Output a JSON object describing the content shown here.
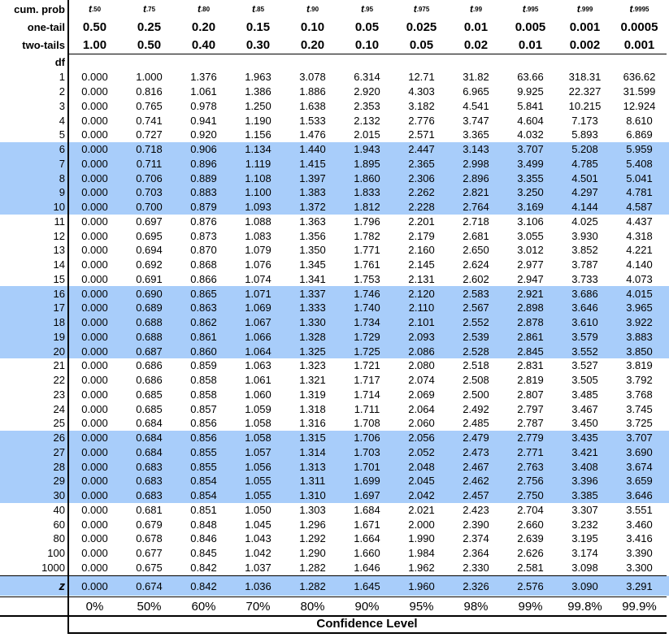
{
  "header": {
    "rows": [
      {
        "label": "cum. prob",
        "cells": [
          {
            "symbol": "t",
            "subscript": ".50"
          },
          {
            "symbol": "t",
            "subscript": ".75"
          },
          {
            "symbol": "t",
            "subscript": ".80"
          },
          {
            "symbol": "t",
            "subscript": ".85"
          },
          {
            "symbol": "t",
            "subscript": ".90"
          },
          {
            "symbol": "t",
            "subscript": ".95"
          },
          {
            "symbol": "t",
            "subscript": ".975"
          },
          {
            "symbol": "t",
            "subscript": ".99"
          },
          {
            "symbol": "t",
            "subscript": ".995"
          },
          {
            "symbol": "t",
            "subscript": ".999"
          },
          {
            "symbol": "t",
            "subscript": ".9995"
          }
        ]
      },
      {
        "label": "one-tail",
        "cells": [
          "0.50",
          "0.25",
          "0.20",
          "0.15",
          "0.10",
          "0.05",
          "0.025",
          "0.01",
          "0.005",
          "0.001",
          "0.0005"
        ]
      },
      {
        "label": "two-tails",
        "cells": [
          "1.00",
          "0.50",
          "0.40",
          "0.30",
          "0.20",
          "0.10",
          "0.05",
          "0.02",
          "0.01",
          "0.002",
          "0.001"
        ]
      }
    ],
    "df_label": "df"
  },
  "table": {
    "rows": [
      {
        "df": "1",
        "cells": [
          "0.000",
          "1.000",
          "1.376",
          "1.963",
          "3.078",
          "6.314",
          "12.71",
          "31.82",
          "63.66",
          "318.31",
          "636.62"
        ]
      },
      {
        "df": "2",
        "cells": [
          "0.000",
          "0.816",
          "1.061",
          "1.386",
          "1.886",
          "2.920",
          "4.303",
          "6.965",
          "9.925",
          "22.327",
          "31.599"
        ]
      },
      {
        "df": "3",
        "cells": [
          "0.000",
          "0.765",
          "0.978",
          "1.250",
          "1.638",
          "2.353",
          "3.182",
          "4.541",
          "5.841",
          "10.215",
          "12.924"
        ]
      },
      {
        "df": "4",
        "cells": [
          "0.000",
          "0.741",
          "0.941",
          "1.190",
          "1.533",
          "2.132",
          "2.776",
          "3.747",
          "4.604",
          "7.173",
          "8.610"
        ]
      },
      {
        "df": "5",
        "cells": [
          "0.000",
          "0.727",
          "0.920",
          "1.156",
          "1.476",
          "2.015",
          "2.571",
          "3.365",
          "4.032",
          "5.893",
          "6.869"
        ]
      },
      {
        "df": "6",
        "cells": [
          "0.000",
          "0.718",
          "0.906",
          "1.134",
          "1.440",
          "1.943",
          "2.447",
          "3.143",
          "3.707",
          "5.208",
          "5.959"
        ]
      },
      {
        "df": "7",
        "cells": [
          "0.000",
          "0.711",
          "0.896",
          "1.119",
          "1.415",
          "1.895",
          "2.365",
          "2.998",
          "3.499",
          "4.785",
          "5.408"
        ]
      },
      {
        "df": "8",
        "cells": [
          "0.000",
          "0.706",
          "0.889",
          "1.108",
          "1.397",
          "1.860",
          "2.306",
          "2.896",
          "3.355",
          "4.501",
          "5.041"
        ]
      },
      {
        "df": "9",
        "cells": [
          "0.000",
          "0.703",
          "0.883",
          "1.100",
          "1.383",
          "1.833",
          "2.262",
          "2.821",
          "3.250",
          "4.297",
          "4.781"
        ]
      },
      {
        "df": "10",
        "cells": [
          "0.000",
          "0.700",
          "0.879",
          "1.093",
          "1.372",
          "1.812",
          "2.228",
          "2.764",
          "3.169",
          "4.144",
          "4.587"
        ]
      },
      {
        "df": "11",
        "cells": [
          "0.000",
          "0.697",
          "0.876",
          "1.088",
          "1.363",
          "1.796",
          "2.201",
          "2.718",
          "3.106",
          "4.025",
          "4.437"
        ]
      },
      {
        "df": "12",
        "cells": [
          "0.000",
          "0.695",
          "0.873",
          "1.083",
          "1.356",
          "1.782",
          "2.179",
          "2.681",
          "3.055",
          "3.930",
          "4.318"
        ]
      },
      {
        "df": "13",
        "cells": [
          "0.000",
          "0.694",
          "0.870",
          "1.079",
          "1.350",
          "1.771",
          "2.160",
          "2.650",
          "3.012",
          "3.852",
          "4.221"
        ]
      },
      {
        "df": "14",
        "cells": [
          "0.000",
          "0.692",
          "0.868",
          "1.076",
          "1.345",
          "1.761",
          "2.145",
          "2.624",
          "2.977",
          "3.787",
          "4.140"
        ]
      },
      {
        "df": "15",
        "cells": [
          "0.000",
          "0.691",
          "0.866",
          "1.074",
          "1.341",
          "1.753",
          "2.131",
          "2.602",
          "2.947",
          "3.733",
          "4.073"
        ]
      },
      {
        "df": "16",
        "cells": [
          "0.000",
          "0.690",
          "0.865",
          "1.071",
          "1.337",
          "1.746",
          "2.120",
          "2.583",
          "2.921",
          "3.686",
          "4.015"
        ]
      },
      {
        "df": "17",
        "cells": [
          "0.000",
          "0.689",
          "0.863",
          "1.069",
          "1.333",
          "1.740",
          "2.110",
          "2.567",
          "2.898",
          "3.646",
          "3.965"
        ]
      },
      {
        "df": "18",
        "cells": [
          "0.000",
          "0.688",
          "0.862",
          "1.067",
          "1.330",
          "1.734",
          "2.101",
          "2.552",
          "2.878",
          "3.610",
          "3.922"
        ]
      },
      {
        "df": "19",
        "cells": [
          "0.000",
          "0.688",
          "0.861",
          "1.066",
          "1.328",
          "1.729",
          "2.093",
          "2.539",
          "2.861",
          "3.579",
          "3.883"
        ]
      },
      {
        "df": "20",
        "cells": [
          "0.000",
          "0.687",
          "0.860",
          "1.064",
          "1.325",
          "1.725",
          "2.086",
          "2.528",
          "2.845",
          "3.552",
          "3.850"
        ]
      },
      {
        "df": "21",
        "cells": [
          "0.000",
          "0.686",
          "0.859",
          "1.063",
          "1.323",
          "1.721",
          "2.080",
          "2.518",
          "2.831",
          "3.527",
          "3.819"
        ]
      },
      {
        "df": "22",
        "cells": [
          "0.000",
          "0.686",
          "0.858",
          "1.061",
          "1.321",
          "1.717",
          "2.074",
          "2.508",
          "2.819",
          "3.505",
          "3.792"
        ]
      },
      {
        "df": "23",
        "cells": [
          "0.000",
          "0.685",
          "0.858",
          "1.060",
          "1.319",
          "1.714",
          "2.069",
          "2.500",
          "2.807",
          "3.485",
          "3.768"
        ]
      },
      {
        "df": "24",
        "cells": [
          "0.000",
          "0.685",
          "0.857",
          "1.059",
          "1.318",
          "1.711",
          "2.064",
          "2.492",
          "2.797",
          "3.467",
          "3.745"
        ]
      },
      {
        "df": "25",
        "cells": [
          "0.000",
          "0.684",
          "0.856",
          "1.058",
          "1.316",
          "1.708",
          "2.060",
          "2.485",
          "2.787",
          "3.450",
          "3.725"
        ]
      },
      {
        "df": "26",
        "cells": [
          "0.000",
          "0.684",
          "0.856",
          "1.058",
          "1.315",
          "1.706",
          "2.056",
          "2.479",
          "2.779",
          "3.435",
          "3.707"
        ]
      },
      {
        "df": "27",
        "cells": [
          "0.000",
          "0.684",
          "0.855",
          "1.057",
          "1.314",
          "1.703",
          "2.052",
          "2.473",
          "2.771",
          "3.421",
          "3.690"
        ]
      },
      {
        "df": "28",
        "cells": [
          "0.000",
          "0.683",
          "0.855",
          "1.056",
          "1.313",
          "1.701",
          "2.048",
          "2.467",
          "2.763",
          "3.408",
          "3.674"
        ]
      },
      {
        "df": "29",
        "cells": [
          "0.000",
          "0.683",
          "0.854",
          "1.055",
          "1.311",
          "1.699",
          "2.045",
          "2.462",
          "2.756",
          "3.396",
          "3.659"
        ]
      },
      {
        "df": "30",
        "cells": [
          "0.000",
          "0.683",
          "0.854",
          "1.055",
          "1.310",
          "1.697",
          "2.042",
          "2.457",
          "2.750",
          "3.385",
          "3.646"
        ]
      },
      {
        "df": "40",
        "cells": [
          "0.000",
          "0.681",
          "0.851",
          "1.050",
          "1.303",
          "1.684",
          "2.021",
          "2.423",
          "2.704",
          "3.307",
          "3.551"
        ]
      },
      {
        "df": "60",
        "cells": [
          "0.000",
          "0.679",
          "0.848",
          "1.045",
          "1.296",
          "1.671",
          "2.000",
          "2.390",
          "2.660",
          "3.232",
          "3.460"
        ]
      },
      {
        "df": "80",
        "cells": [
          "0.000",
          "0.678",
          "0.846",
          "1.043",
          "1.292",
          "1.664",
          "1.990",
          "2.374",
          "2.639",
          "3.195",
          "3.416"
        ]
      },
      {
        "df": "100",
        "cells": [
          "0.000",
          "0.677",
          "0.845",
          "1.042",
          "1.290",
          "1.660",
          "1.984",
          "2.364",
          "2.626",
          "3.174",
          "3.390"
        ]
      },
      {
        "df": "1000",
        "cells": [
          "0.000",
          "0.675",
          "0.842",
          "1.037",
          "1.282",
          "1.646",
          "1.962",
          "2.330",
          "2.581",
          "3.098",
          "3.300"
        ]
      }
    ]
  },
  "z_row": {
    "label": "z",
    "cells": [
      "0.000",
      "0.674",
      "0.842",
      "1.036",
      "1.282",
      "1.645",
      "1.960",
      "2.326",
      "2.576",
      "3.090",
      "3.291"
    ]
  },
  "confidence": {
    "cells": [
      "0%",
      "50%",
      "60%",
      "70%",
      "80%",
      "90%",
      "95%",
      "98%",
      "99%",
      "99.8%",
      "99.9%"
    ],
    "label": "Confidence Level"
  }
}
